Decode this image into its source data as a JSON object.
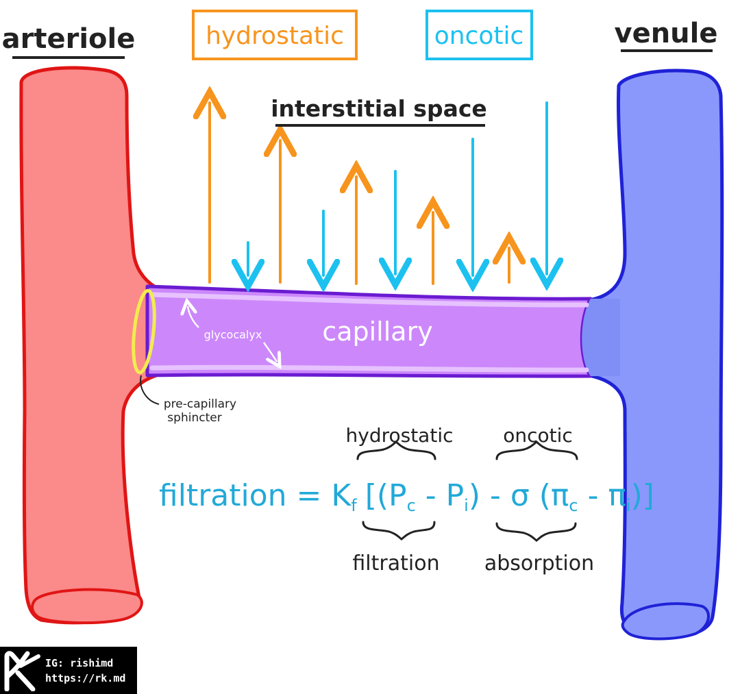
{
  "labels": {
    "arteriole": "arteriole",
    "venule": "venule",
    "hydrostatic_box": "hydrostatic",
    "oncotic_box": "oncotic",
    "interstitial_space": "interstitial space",
    "capillary": "capillary",
    "glycocalyx": "glycocalyx",
    "pre_capillary_line1": "pre-capillary",
    "pre_capillary_line2": "sphincter"
  },
  "formula": {
    "lhs": "filtration = K",
    "kf_sub": "f",
    "hydrostatic_part": "[(P",
    "pc_sub": "c",
    "minus_pi": " - P",
    "pi_sub": "i",
    "sigma_part": ") - σ (π",
    "pic_sub": "c",
    "minus_pii": " - π",
    "pii_sub": "i",
    "close": ")]",
    "brace_top_left_label": "hydrostatic",
    "brace_top_right_label": "oncotic",
    "brace_bottom_left_label": "filtration",
    "brace_bottom_right_label": "absorption"
  },
  "colors": {
    "arteriole_fill": "#fb8a8a",
    "arteriole_stroke": "#e01515",
    "venule_fill": "#8a98fb",
    "venule_stroke": "#1f22d6",
    "capillary_fill": "#cc88fb",
    "capillary_stroke": "#6a1bd1",
    "hydrostatic": "#f7941d",
    "oncotic": "#1cc1ef",
    "formula": "#22a9d8",
    "text_dark": "#222222",
    "sphincter": "#f2ec4f"
  },
  "credit": {
    "ig": "IG: rishimd",
    "url": "https://rk.md"
  }
}
